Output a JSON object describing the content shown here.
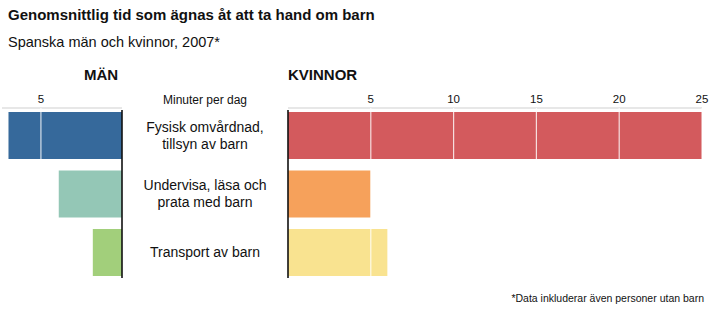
{
  "title": "Genomsnittlig tid som ägnas åt att ta hand om barn",
  "subtitle": "Spanska män och kvinnor, 2007*",
  "note": "*Data inkluderar även personer utan barn",
  "chart_data": [
    {
      "type": "bar",
      "orientation": "horizontal",
      "title": "MÄN",
      "categories": [
        "Fysisk omvårdnad, tillsyn av barn",
        "Undervisa, läsa och prata med barn",
        "Transport av barn"
      ],
      "values": [
        7,
        3.9,
        1.8
      ],
      "colors": [
        "#36699b",
        "#94c7b6",
        "#a2cf7b"
      ],
      "xlim": [
        0,
        7.4
      ],
      "xticks": [
        5
      ],
      "grid": true
    },
    {
      "type": "bar",
      "orientation": "horizontal",
      "title": "KVINNOR",
      "xlabel": "Minuter per dag",
      "values": [
        25,
        5,
        6
      ],
      "colors": [
        "#d35a5d",
        "#f6a15b",
        "#f9e390"
      ],
      "xlim": [
        0,
        25
      ],
      "xticks": [
        5,
        10,
        15,
        20,
        25
      ],
      "grid": true
    }
  ]
}
